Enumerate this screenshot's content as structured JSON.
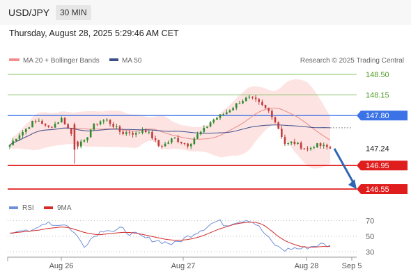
{
  "header": {
    "pair": "USD/JPY",
    "timeframe": "30 MIN",
    "datetime": "Thursday, August 28, 2025 5:29:46 AM CET"
  },
  "legend": {
    "ma20_label": "MA 20 + Bollinger Bands",
    "ma50_label": "MA 50",
    "research": "Research © 2025 Trading Central",
    "rsi_label": "RSI",
    "rsi_ma_label": "9MA"
  },
  "colors": {
    "ma20": "#e88a88",
    "band": "#fde0df",
    "ma50": "#3a4f8c",
    "bull": "#2d8a2d",
    "bear": "#c23b3b",
    "resistance": "#8cc26b",
    "pivot": "#3b73e6",
    "support": "#e01d1d",
    "last": "#222222",
    "rsi": "#6f8fd8",
    "rsi_ma": "#d42a2a",
    "arrow": "#2f66b3"
  },
  "chart_data": [
    {
      "type": "candlestick",
      "title": "",
      "xlabel": "",
      "ylabel": "",
      "ylim": [
        146.4,
        148.65
      ],
      "x_ticks": [
        "Aug 26",
        "Aug 27",
        "Aug 28",
        "Sep 5"
      ],
      "grid": false,
      "series": [
        {
          "name": "MA 20 + Bollinger Bands",
          "values": []
        },
        {
          "name": "MA 50",
          "values": []
        }
      ],
      "close_path": [
        147.3,
        147.45,
        147.55,
        147.68,
        147.72,
        147.58,
        147.65,
        147.75,
        147.55,
        147.3,
        147.35,
        147.6,
        147.7,
        147.72,
        147.62,
        147.5,
        147.52,
        147.48,
        147.58,
        147.45,
        147.28,
        147.32,
        147.42,
        147.35,
        147.3,
        147.45,
        147.55,
        147.7,
        147.78,
        147.85,
        147.95,
        148.05,
        148.1,
        148.05,
        147.95,
        147.85,
        147.6,
        147.3,
        147.35,
        147.28,
        147.22,
        147.3,
        147.28,
        147.24
      ],
      "levels": [
        {
          "value": 148.5,
          "label": "148.50",
          "kind": "resistance"
        },
        {
          "value": 148.15,
          "label": "148.15",
          "kind": "resistance"
        },
        {
          "value": 147.8,
          "label": "147.80",
          "kind": "pivot"
        },
        {
          "value": 147.24,
          "label": "147.24",
          "kind": "last"
        },
        {
          "value": 146.95,
          "label": "146.95",
          "kind": "support"
        },
        {
          "value": 146.55,
          "label": "146.55",
          "kind": "support"
        }
      ],
      "forecast_target": 146.55
    },
    {
      "type": "line",
      "title": "",
      "ylim": [
        25,
        75
      ],
      "y_ticks": [
        "70",
        "50",
        "30"
      ],
      "series": [
        {
          "name": "RSI",
          "values": [
            52,
            58,
            60,
            55,
            62,
            70,
            64,
            66,
            62,
            50,
            38,
            48,
            55,
            60,
            56,
            60,
            54,
            52,
            48,
            46,
            44,
            42,
            40,
            45,
            50,
            55,
            60,
            66,
            70,
            64,
            68,
            70,
            72,
            66,
            56,
            44,
            36,
            32,
            35,
            34,
            36,
            38,
            40,
            37
          ]
        },
        {
          "name": "9MA",
          "values": [
            54,
            55,
            56,
            57,
            58,
            60,
            61,
            62,
            61,
            58,
            55,
            53,
            52,
            53,
            54,
            55,
            55,
            54,
            52,
            50,
            48,
            46,
            45,
            45,
            46,
            48,
            51,
            55,
            59,
            62,
            65,
            67,
            68,
            68,
            65,
            58,
            50,
            44,
            40,
            37,
            36,
            36,
            37,
            37
          ]
        }
      ]
    }
  ]
}
